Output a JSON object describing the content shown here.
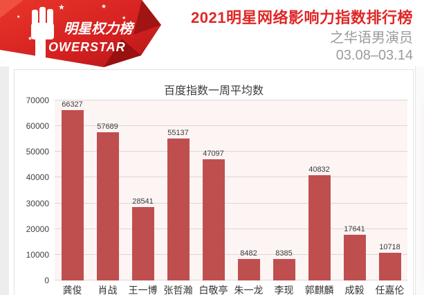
{
  "header": {
    "logo_brand_cn": "明星权力榜",
    "logo_brand_en": "OWERSTAR",
    "title": "2021明星网络影响力指数排行榜",
    "subtitle": "之华语男演员",
    "date_range": "03.08–03.14"
  },
  "colors": {
    "title_red": "#e02626",
    "subtitle_gray": "#9b9b9b",
    "logo_red": "#d42020",
    "logo_red_dark": "#a01414",
    "bar_red": "#bf4f4f",
    "plot_background": "#fdf4f4",
    "gridline": "#ddd6d6",
    "card_border": "#e2e2e2"
  },
  "chart_data": {
    "type": "bar",
    "title": "百度指数一周平均数",
    "categories": [
      "龚俊",
      "肖战",
      "王一博",
      "张哲瀚",
      "白敬亭",
      "朱一龙",
      "李现",
      "郭麒麟",
      "成毅",
      "任嘉伦"
    ],
    "values": [
      66327,
      57689,
      28541,
      55137,
      47097,
      8482,
      8385,
      40832,
      17641,
      10718
    ],
    "xlabel": "",
    "ylabel": "",
    "ylim": [
      0,
      70000
    ],
    "ytick_step": 10000,
    "grid": true,
    "legend": false,
    "bar_color": "#bf4f4f",
    "value_labels_shown": true
  }
}
